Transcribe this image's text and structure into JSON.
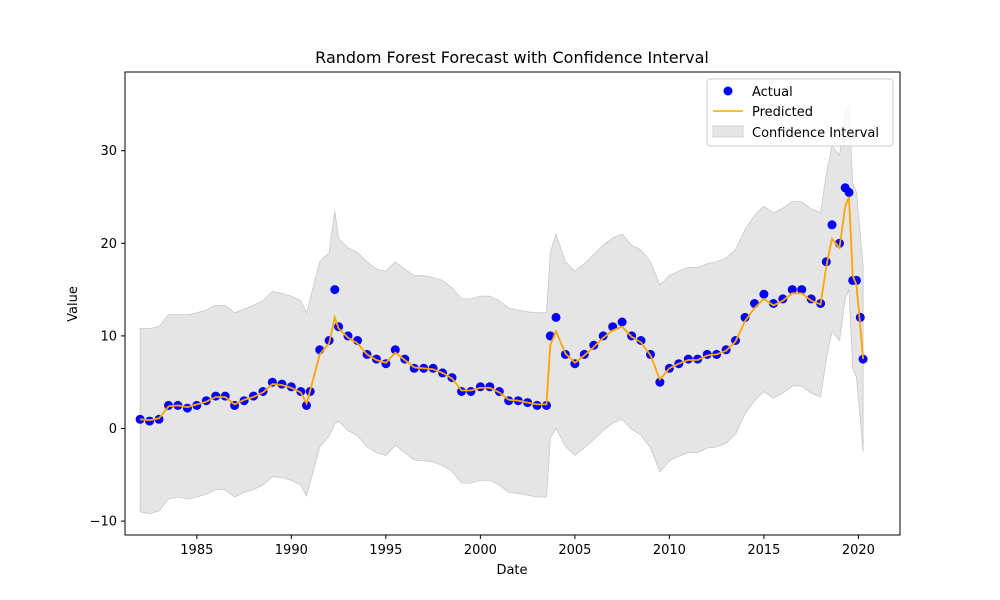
{
  "chart_data": {
    "type": "line",
    "title": "Random Forest Forecast with Confidence Interval",
    "xlabel": "Date",
    "ylabel": "Value",
    "xlim": [
      1981.2,
      2022.2
    ],
    "ylim": [
      -11.5,
      38.5
    ],
    "x_ticks": [
      1985,
      1990,
      1995,
      2000,
      2005,
      2010,
      2015,
      2020
    ],
    "y_ticks": [
      -10,
      0,
      10,
      20,
      30
    ],
    "legend": {
      "position": "top-right",
      "entries": [
        "Actual",
        "Predicted",
        "Confidence Interval"
      ]
    },
    "colors": {
      "actual": "#0000ff",
      "predicted": "#ffa500",
      "confidence": "#d3d3d3"
    },
    "series": [
      {
        "name": "Actual",
        "kind": "scatter",
        "x": [
          1982.0,
          1982.5,
          1983.0,
          1983.5,
          1984.0,
          1984.5,
          1985.0,
          1985.5,
          1986.0,
          1986.5,
          1987.0,
          1987.5,
          1988.0,
          1988.5,
          1989.0,
          1989.5,
          1990.0,
          1990.5,
          1990.8,
          1991.0,
          1991.5,
          1992.0,
          1992.3,
          1992.5,
          1993.0,
          1993.5,
          1994.0,
          1994.5,
          1995.0,
          1995.5,
          1996.0,
          1996.5,
          1997.0,
          1997.5,
          1998.0,
          1998.5,
          1999.0,
          1999.5,
          2000.0,
          2000.5,
          2001.0,
          2001.5,
          2002.0,
          2002.5,
          2003.0,
          2003.5,
          2003.7,
          2004.0,
          2004.5,
          2005.0,
          2005.5,
          2006.0,
          2006.5,
          2007.0,
          2007.5,
          2008.0,
          2008.5,
          2009.0,
          2009.5,
          2010.0,
          2010.5,
          2011.0,
          2011.5,
          2012.0,
          2012.5,
          2013.0,
          2013.5,
          2014.0,
          2014.5,
          2015.0,
          2015.5,
          2016.0,
          2016.5,
          2017.0,
          2017.5,
          2018.0,
          2018.3,
          2018.6,
          2019.0,
          2019.3,
          2019.5,
          2019.7,
          2019.9,
          2020.1,
          2020.25
        ],
        "values": [
          1.0,
          0.8,
          1.0,
          2.5,
          2.5,
          2.2,
          2.5,
          3.0,
          3.5,
          3.5,
          2.5,
          3.0,
          3.5,
          4.0,
          5.0,
          4.8,
          4.5,
          4.0,
          2.5,
          4.0,
          8.5,
          9.5,
          15.0,
          11.0,
          10.0,
          9.5,
          8.0,
          7.5,
          7.0,
          8.5,
          7.5,
          6.5,
          6.5,
          6.5,
          6.0,
          5.5,
          4.0,
          4.0,
          4.5,
          4.5,
          4.0,
          3.0,
          3.0,
          2.8,
          2.5,
          2.5,
          10.0,
          12.0,
          8.0,
          7.0,
          8.0,
          9.0,
          10.0,
          11.0,
          11.5,
          10.0,
          9.5,
          8.0,
          5.0,
          6.5,
          7.0,
          7.5,
          7.5,
          8.0,
          8.0,
          8.5,
          9.5,
          12.0,
          13.5,
          14.5,
          13.5,
          14.0,
          15.0,
          15.0,
          14.0,
          13.5,
          18.0,
          22.0,
          20.0,
          26.0,
          25.5,
          16.0,
          16.0,
          12.0,
          7.5
        ]
      },
      {
        "name": "Predicted",
        "kind": "line",
        "x": [
          1982.0,
          1982.5,
          1983.0,
          1983.5,
          1984.0,
          1984.5,
          1985.0,
          1985.5,
          1986.0,
          1986.5,
          1987.0,
          1987.5,
          1988.0,
          1988.5,
          1989.0,
          1989.5,
          1990.0,
          1990.5,
          1990.8,
          1991.0,
          1991.5,
          1992.0,
          1992.3,
          1992.5,
          1993.0,
          1993.5,
          1994.0,
          1994.5,
          1995.0,
          1995.5,
          1996.0,
          1996.5,
          1997.0,
          1997.5,
          1998.0,
          1998.5,
          1999.0,
          1999.5,
          2000.0,
          2000.5,
          2001.0,
          2001.5,
          2002.0,
          2002.5,
          2003.0,
          2003.5,
          2003.7,
          2004.0,
          2004.5,
          2005.0,
          2005.5,
          2006.0,
          2006.5,
          2007.0,
          2007.5,
          2008.0,
          2008.5,
          2009.0,
          2009.5,
          2010.0,
          2010.5,
          2011.0,
          2011.5,
          2012.0,
          2012.5,
          2013.0,
          2013.5,
          2014.0,
          2014.5,
          2015.0,
          2015.5,
          2016.0,
          2016.5,
          2017.0,
          2017.5,
          2018.0,
          2018.3,
          2018.6,
          2019.0,
          2019.3,
          2019.5,
          2019.7,
          2019.9,
          2020.1,
          2020.25
        ],
        "values": [
          1.0,
          0.9,
          1.1,
          2.4,
          2.5,
          2.3,
          2.6,
          2.9,
          3.4,
          3.4,
          2.6,
          3.1,
          3.4,
          3.9,
          4.8,
          4.7,
          4.4,
          3.9,
          2.7,
          4.1,
          8.0,
          9.2,
          12.0,
          10.8,
          9.8,
          9.2,
          8.0,
          7.4,
          7.1,
          8.2,
          7.4,
          6.6,
          6.5,
          6.4,
          6.0,
          5.4,
          4.1,
          4.1,
          4.4,
          4.4,
          3.9,
          3.1,
          3.0,
          2.8,
          2.6,
          2.6,
          9.0,
          10.5,
          8.1,
          7.1,
          7.9,
          8.8,
          9.8,
          10.6,
          11.0,
          9.9,
          9.3,
          7.9,
          5.3,
          6.5,
          7.0,
          7.4,
          7.4,
          7.9,
          8.0,
          8.4,
          9.4,
          11.6,
          13.0,
          14.0,
          13.3,
          13.8,
          14.6,
          14.6,
          13.8,
          13.4,
          17.5,
          20.5,
          19.5,
          24.0,
          25.0,
          16.5,
          15.5,
          11.0,
          7.5
        ]
      },
      {
        "name": "Confidence Interval",
        "kind": "band",
        "x": [
          1982.0,
          1982.5,
          1983.0,
          1983.5,
          1984.0,
          1984.5,
          1985.0,
          1985.5,
          1986.0,
          1986.5,
          1987.0,
          1987.5,
          1988.0,
          1988.5,
          1989.0,
          1989.5,
          1990.0,
          1990.5,
          1990.8,
          1991.0,
          1991.5,
          1992.0,
          1992.3,
          1992.5,
          1993.0,
          1993.5,
          1994.0,
          1994.5,
          1995.0,
          1995.5,
          1996.0,
          1996.5,
          1997.0,
          1997.5,
          1998.0,
          1998.5,
          1999.0,
          1999.5,
          2000.0,
          2000.5,
          2001.0,
          2001.5,
          2002.0,
          2002.5,
          2003.0,
          2003.5,
          2003.7,
          2004.0,
          2004.5,
          2005.0,
          2005.5,
          2006.0,
          2006.5,
          2007.0,
          2007.5,
          2008.0,
          2008.5,
          2009.0,
          2009.5,
          2010.0,
          2010.5,
          2011.0,
          2011.5,
          2012.0,
          2012.5,
          2013.0,
          2013.5,
          2014.0,
          2014.5,
          2015.0,
          2015.5,
          2016.0,
          2016.5,
          2017.0,
          2017.5,
          2018.0,
          2018.3,
          2018.6,
          2019.0,
          2019.3,
          2019.5,
          2019.7,
          2019.9,
          2020.1,
          2020.25
        ],
        "upper": [
          10.8,
          10.8,
          11.0,
          12.3,
          12.3,
          12.3,
          12.5,
          12.8,
          13.3,
          13.3,
          12.5,
          12.9,
          13.3,
          13.8,
          14.8,
          14.6,
          14.3,
          13.8,
          12.5,
          14.0,
          18.0,
          19.0,
          23.5,
          20.5,
          19.5,
          19.0,
          18.0,
          17.2,
          17.0,
          18.0,
          17.2,
          16.5,
          16.5,
          16.3,
          16.0,
          15.2,
          14.0,
          14.0,
          14.3,
          14.3,
          13.8,
          13.0,
          12.8,
          12.6,
          12.5,
          12.5,
          19.0,
          21.0,
          18.0,
          17.0,
          17.8,
          18.8,
          19.8,
          20.6,
          21.0,
          19.8,
          19.3,
          18.0,
          15.5,
          16.5,
          17.0,
          17.4,
          17.4,
          17.8,
          18.0,
          18.4,
          19.3,
          21.5,
          23.0,
          24.0,
          23.3,
          23.8,
          24.5,
          24.5,
          23.7,
          23.3,
          27.5,
          30.5,
          29.5,
          34.0,
          35.0,
          26.5,
          25.5,
          21.0,
          17.5
        ],
        "lower": [
          -9.0,
          -9.2,
          -8.9,
          -7.6,
          -7.4,
          -7.6,
          -7.4,
          -7.1,
          -6.6,
          -6.6,
          -7.4,
          -6.9,
          -6.6,
          -6.1,
          -5.2,
          -5.3,
          -5.6,
          -6.1,
          -7.3,
          -5.8,
          -2.0,
          -0.8,
          0.5,
          0.8,
          -0.2,
          -0.8,
          -2.0,
          -2.6,
          -2.9,
          -1.8,
          -2.6,
          -3.4,
          -3.5,
          -3.6,
          -4.0,
          -4.6,
          -5.9,
          -5.9,
          -5.6,
          -5.6,
          -6.1,
          -6.9,
          -7.0,
          -7.2,
          -7.4,
          -7.4,
          -1.0,
          0.0,
          -1.9,
          -2.9,
          -2.1,
          -1.2,
          -0.2,
          0.6,
          1.0,
          -0.1,
          -0.7,
          -2.1,
          -4.7,
          -3.5,
          -3.0,
          -2.6,
          -2.6,
          -2.1,
          -2.0,
          -1.6,
          -0.6,
          1.6,
          3.0,
          4.0,
          3.3,
          3.8,
          4.6,
          4.6,
          3.8,
          3.4,
          7.5,
          10.5,
          9.5,
          14.0,
          15.0,
          6.5,
          5.5,
          1.0,
          -2.5
        ]
      }
    ]
  }
}
